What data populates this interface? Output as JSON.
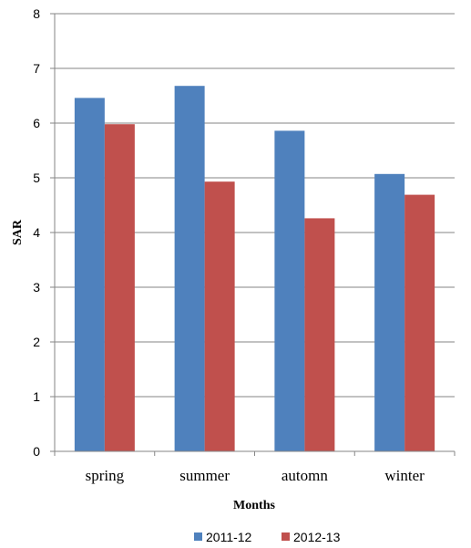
{
  "chart_data": {
    "type": "bar",
    "categories": [
      "spring",
      "summer",
      "automn",
      "winter"
    ],
    "series": [
      {
        "name": "2011-12",
        "values": [
          6.46,
          6.68,
          5.86,
          5.07
        ],
        "color": "#4F81BD"
      },
      {
        "name": "2012-13",
        "values": [
          5.98,
          4.93,
          4.26,
          4.69
        ],
        "color": "#C0504D"
      }
    ],
    "xlabel": "Months",
    "ylabel": "SAR",
    "ylim": [
      0,
      8
    ],
    "yticks": [
      "0",
      "1",
      "2",
      "3",
      "4",
      "5",
      "6",
      "7",
      "8"
    ],
    "grid": true,
    "legend_position": "bottom"
  }
}
